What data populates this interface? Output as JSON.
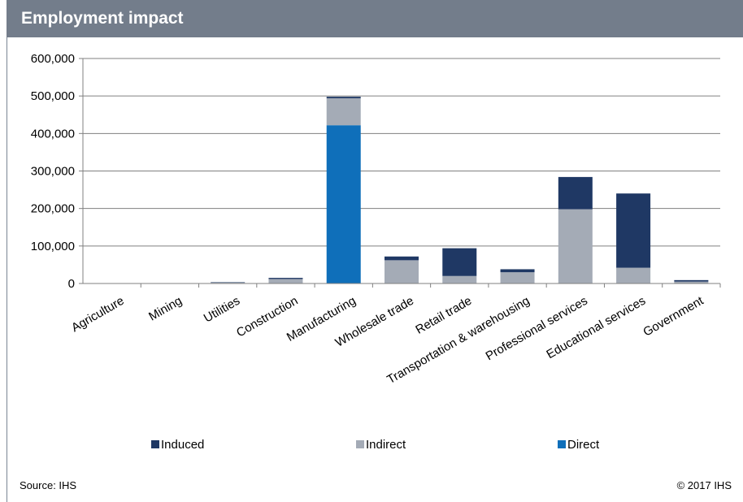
{
  "header": {
    "title": "Employment impact"
  },
  "footer": {
    "source": "Source: IHS",
    "copyright": "© 2017 IHS"
  },
  "colors": {
    "induced": "#1f3864",
    "indirect": "#a4abb6",
    "direct": "#0f6fba",
    "header_bg": "#737d8b",
    "axis": "#808080"
  },
  "chart_data": {
    "type": "bar",
    "stacked": true,
    "categories": [
      "Agriculture",
      "Mining",
      "Utilities",
      "Construction",
      "Manufacturing",
      "Wholesale trade",
      "Retail trade",
      "Transportation & warehousing",
      "Professional services",
      "Educational services",
      "Government"
    ],
    "series": [
      {
        "name": "Direct",
        "color": "#0f6fba",
        "values": [
          0,
          0,
          0,
          0,
          422000,
          0,
          0,
          0,
          0,
          0,
          0
        ]
      },
      {
        "name": "Indirect",
        "color": "#a4abb6",
        "values": [
          1000,
          500,
          3000,
          12000,
          72000,
          62000,
          20000,
          30000,
          198000,
          42000,
          5000
        ]
      },
      {
        "name": "Induced",
        "color": "#1f3864",
        "values": [
          0,
          0,
          500,
          3000,
          4000,
          10000,
          74000,
          8000,
          86000,
          198000,
          4000
        ]
      }
    ],
    "legend_order": [
      "Induced",
      "Indirect",
      "Direct"
    ],
    "yticks": [
      "0",
      "100,000",
      "200,000",
      "300,000",
      "400,000",
      "500,000",
      "600,000"
    ],
    "ylim": [
      0,
      600000
    ],
    "grid": true,
    "legend_position": "bottom"
  }
}
